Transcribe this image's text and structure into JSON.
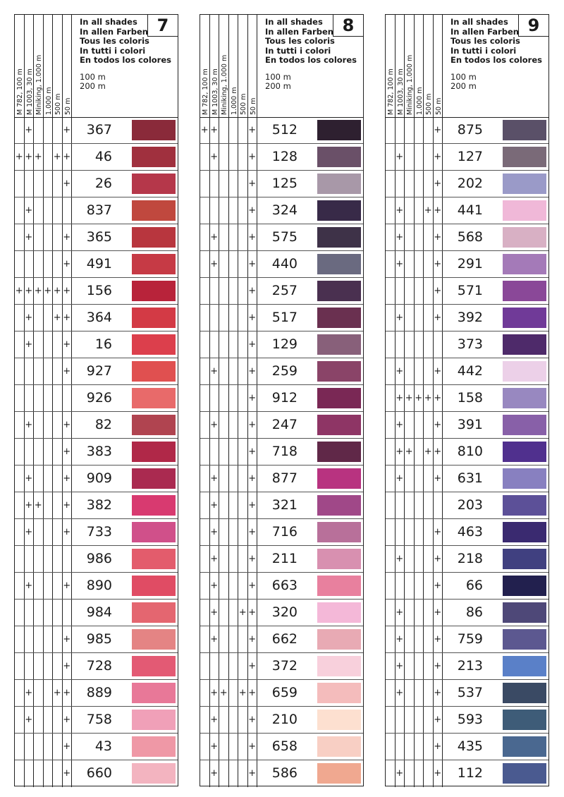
{
  "header": {
    "columns": [
      "M 782, 100 m",
      "M 1003, 30 m",
      "Miniking, 1.000 m",
      "1.000 m",
      "500 m",
      "50 m"
    ],
    "lines": [
      "In all shades",
      "In allen Farben",
      "Tous les coloris",
      "In tutti i colori",
      "En todos los colores"
    ],
    "meters": [
      "100 m",
      "200 m"
    ]
  },
  "tables": [
    {
      "group": "7",
      "rows": [
        {
          "n": "367",
          "m": ".+...+",
          "c": "#8a2a3a"
        },
        {
          "n": "46",
          "m": "+++.++",
          "c": "#a0303e"
        },
        {
          "n": "26",
          "m": ".....+",
          "c": "#b5374a"
        },
        {
          "n": "837",
          "m": ".+....",
          "c": "#c0483e"
        },
        {
          "n": "365",
          "m": ".+...+",
          "c": "#b8363e"
        },
        {
          "n": "491",
          "m": ".....+",
          "c": "#c63a45"
        },
        {
          "n": "156",
          "m": "++++++",
          "c": "#b8233a"
        },
        {
          "n": "364",
          "m": ".+..++",
          "c": "#d33a45"
        },
        {
          "n": "16",
          "m": ".+...+",
          "c": "#dc3f4c"
        },
        {
          "n": "927",
          "m": ".....+",
          "c": "#e05050"
        },
        {
          "n": "926",
          "m": "......",
          "c": "#e86a6a"
        },
        {
          "n": "82",
          "m": ".+...+",
          "c": "#b04450"
        },
        {
          "n": "383",
          "m": ".....+",
          "c": "#b02848"
        },
        {
          "n": "909",
          "m": ".+...+",
          "c": "#aa2a50"
        },
        {
          "n": "382",
          "m": ".++..+",
          "c": "#d83a70"
        },
        {
          "n": "733",
          "m": ".+...+",
          "c": "#d0508a"
        },
        {
          "n": "986",
          "m": "......",
          "c": "#e35c6c"
        },
        {
          "n": "890",
          "m": ".+...+",
          "c": "#e04c64"
        },
        {
          "n": "984",
          "m": "......",
          "c": "#e46670"
        },
        {
          "n": "985",
          "m": ".....+",
          "c": "#e48484"
        },
        {
          "n": "728",
          "m": ".....+",
          "c": "#e35a74"
        },
        {
          "n": "889",
          "m": ".+..++",
          "c": "#e87898"
        },
        {
          "n": "758",
          "m": ".+...+",
          "c": "#f0a0b8"
        },
        {
          "n": "43",
          "m": ".....+",
          "c": "#ef98a6"
        },
        {
          "n": "660",
          "m": ".....+",
          "c": "#f3b4c0"
        }
      ]
    },
    {
      "group": "8",
      "rows": [
        {
          "n": "512",
          "m": "++...+",
          "c": "#2e2030"
        },
        {
          "n": "128",
          "m": ".+...+",
          "c": "#6a5068"
        },
        {
          "n": "125",
          "m": ".....+",
          "c": "#a898a8"
        },
        {
          "n": "324",
          "m": ".....+",
          "c": "#382a48"
        },
        {
          "n": "575",
          "m": ".+...+",
          "c": "#3e3248"
        },
        {
          "n": "440",
          "m": ".+...+",
          "c": "#6a6a80"
        },
        {
          "n": "257",
          "m": ".....+",
          "c": "#4a3050"
        },
        {
          "n": "517",
          "m": ".....+",
          "c": "#6a3050"
        },
        {
          "n": "129",
          "m": ".....+",
          "c": "#88607a"
        },
        {
          "n": "259",
          "m": ".+...+",
          "c": "#8a4468"
        },
        {
          "n": "912",
          "m": ".....+",
          "c": "#7a2855"
        },
        {
          "n": "247",
          "m": ".+...+",
          "c": "#8e3565"
        },
        {
          "n": "718",
          "m": ".....+",
          "c": "#602848"
        },
        {
          "n": "877",
          "m": ".+...+",
          "c": "#b83380"
        },
        {
          "n": "321",
          "m": ".+...+",
          "c": "#a04888"
        },
        {
          "n": "716",
          "m": ".+...+",
          "c": "#b8709a"
        },
        {
          "n": "211",
          "m": ".+...+",
          "c": "#d890b0"
        },
        {
          "n": "663",
          "m": ".+...+",
          "c": "#e8809e"
        },
        {
          "n": "320",
          "m": ".+..++",
          "c": "#f4b8d8"
        },
        {
          "n": "662",
          "m": ".+...+",
          "c": "#e8aab4"
        },
        {
          "n": "372",
          "m": ".....+",
          "c": "#f8d0dc"
        },
        {
          "n": "659",
          "m": ".++.++",
          "c": "#f4bcbc"
        },
        {
          "n": "210",
          "m": ".+...+",
          "c": "#fde0d0"
        },
        {
          "n": "658",
          "m": ".+...+",
          "c": "#f8cfc4"
        },
        {
          "n": "586",
          "m": ".+...+",
          "c": "#f0a890"
        }
      ]
    },
    {
      "group": "9",
      "rows": [
        {
          "n": "875",
          "m": ".....+",
          "c": "#5a5068"
        },
        {
          "n": "127",
          "m": ".+...+",
          "c": "#7a6a78"
        },
        {
          "n": "202",
          "m": ".....+",
          "c": "#9a9ac8"
        },
        {
          "n": "441",
          "m": ".+..++",
          "c": "#f0b8d8"
        },
        {
          "n": "568",
          "m": ".+...+",
          "c": "#d8b0c4"
        },
        {
          "n": "291",
          "m": ".+...+",
          "c": "#a47ab8"
        },
        {
          "n": "571",
          "m": ".....+",
          "c": "#8a4898"
        },
        {
          "n": "392",
          "m": ".+...+",
          "c": "#703a98"
        },
        {
          "n": "373",
          "m": "......",
          "c": "#4e2a6a"
        },
        {
          "n": "442",
          "m": ".+...+",
          "c": "#ecd0e8"
        },
        {
          "n": "158",
          "m": ".+++++",
          "c": "#9888c0"
        },
        {
          "n": "391",
          "m": ".+...+",
          "c": "#8860a8"
        },
        {
          "n": "810",
          "m": ".++.++",
          "c": "#50308e"
        },
        {
          "n": "631",
          "m": ".+...+",
          "c": "#8880c0"
        },
        {
          "n": "203",
          "m": "......",
          "c": "#5c5098"
        },
        {
          "n": "463",
          "m": ".....+",
          "c": "#3a2a70"
        },
        {
          "n": "218",
          "m": ".+...+",
          "c": "#404080"
        },
        {
          "n": "66",
          "m": ".....+",
          "c": "#22204e"
        },
        {
          "n": "86",
          "m": ".+...+",
          "c": "#4e4878"
        },
        {
          "n": "759",
          "m": ".+...+",
          "c": "#5c5890"
        },
        {
          "n": "213",
          "m": ".+...+",
          "c": "#5a80c8"
        },
        {
          "n": "537",
          "m": ".+...+",
          "c": "#3a4a64"
        },
        {
          "n": "593",
          "m": ".....+",
          "c": "#3e5c78"
        },
        {
          "n": "435",
          "m": ".....+",
          "c": "#4a6890"
        },
        {
          "n": "112",
          "m": ".+...+",
          "c": "#4a5a90"
        }
      ]
    }
  ]
}
